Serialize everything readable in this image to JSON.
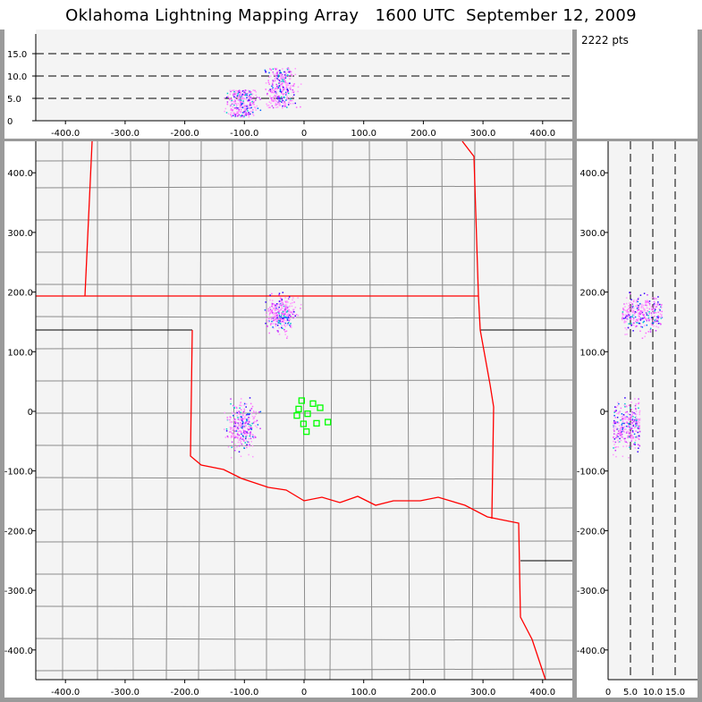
{
  "title": "Oklahoma Lightning Mapping Array   1600 UTC  September 12, 2009",
  "points_label": "2222 pts",
  "colors": {
    "state_border": "#ff0000",
    "county_line": "#8c8c8c",
    "station": "#00ff00",
    "plot_bg": "#f4f4f4",
    "frame": "#9a9a9a"
  },
  "chart_data": [
    {
      "type": "scatter",
      "panel": "altitude-vs-east-west",
      "xlim": [
        -450,
        450
      ],
      "ylim": [
        0,
        20
      ],
      "x_ticks": [
        "-400.0",
        "-300.0",
        "-200.0",
        "-100.0",
        "0",
        "100.0",
        "200.0",
        "300.0",
        "400.0"
      ],
      "y_ticks": [
        "0",
        "5.0",
        "10.0",
        "15.0"
      ],
      "grid": "dashed horizontal at 5,10,15"
    },
    {
      "type": "scatter",
      "panel": "plan-view-map",
      "xlim": [
        -450,
        450
      ],
      "ylim": [
        -450,
        450
      ],
      "x_ticks": [
        "-400.0",
        "-300.0",
        "-200.0",
        "-100.0",
        "0",
        "100.0",
        "200.0",
        "300.0",
        "400.0"
      ],
      "y_ticks": [
        "400.0",
        "300.0",
        "200.0",
        "100.0",
        "0",
        "-100.0",
        "-200.0",
        "-300.0",
        "-400.0"
      ],
      "stations": [
        [
          -4,
          18
        ],
        [
          -9,
          4
        ],
        [
          6,
          -4
        ],
        [
          -12,
          -7
        ],
        [
          15,
          13
        ],
        [
          27,
          6
        ],
        [
          21,
          -20
        ],
        [
          40,
          -18
        ],
        [
          -1,
          -21
        ],
        [
          4,
          -34
        ]
      ],
      "source_clusters": [
        {
          "x": -105,
          "y": -25,
          "alt": [
            1,
            7
          ]
        },
        {
          "x": -40,
          "y": 165,
          "alt": [
            3,
            12
          ]
        }
      ]
    },
    {
      "type": "scatter",
      "panel": "north-south-vs-altitude",
      "xlim": [
        0,
        20
      ],
      "ylim": [
        -450,
        450
      ],
      "x_ticks": [
        "0",
        "5.0",
        "10.0",
        "15.0"
      ],
      "y_ticks": [
        "400.0",
        "300.0",
        "200.0",
        "100.0",
        "0",
        "-100.0",
        "-200.0",
        "-300.0",
        "-400.0"
      ],
      "grid": "dashed vertical at 5,10,15"
    }
  ]
}
